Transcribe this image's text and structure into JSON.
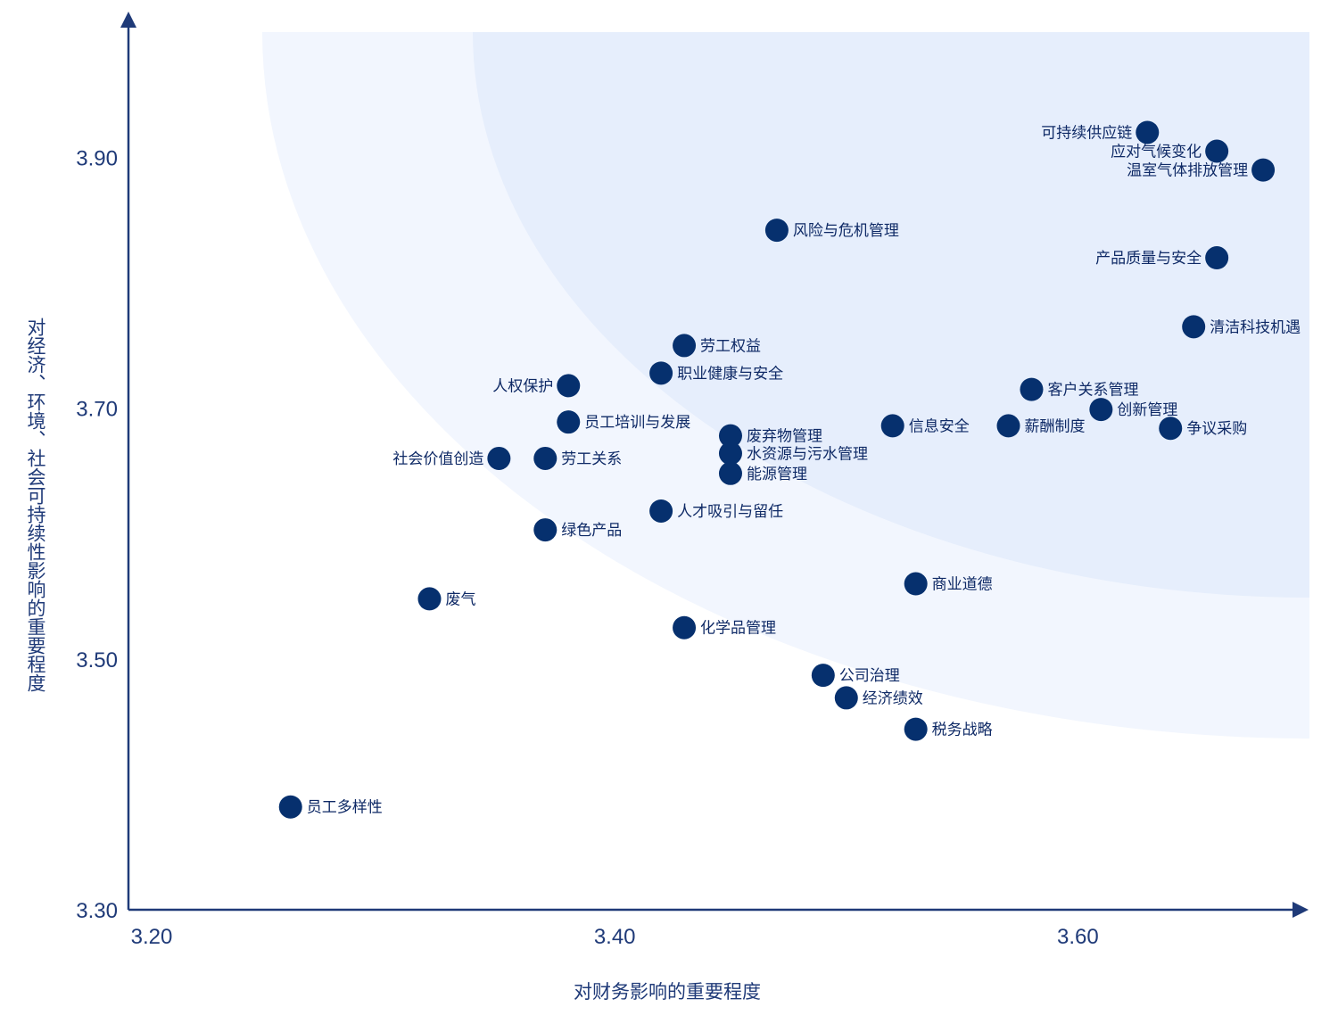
{
  "chart_data": {
    "type": "scatter",
    "title": "",
    "xlabel": "对财务影响的重要程度",
    "ylabel": "对经济、环境、社会可持续性影响的重要程度",
    "xlim": [
      3.19,
      3.7
    ],
    "ylim": [
      3.3,
      4.0
    ],
    "xticks": [
      "3.20",
      "3.40",
      "3.60"
    ],
    "xtick_values": [
      3.2,
      3.4,
      3.6
    ],
    "yticks": [
      "3.30",
      "3.50",
      "3.70",
      "3.90"
    ],
    "ytick_values": [
      3.3,
      3.5,
      3.7,
      3.9
    ],
    "grid": false,
    "colors": {
      "point": "#06306e",
      "axis": "#1f3a78",
      "outer_zone": "#f2f6fe",
      "inner_zone": "#e6eefc"
    },
    "points": [
      {
        "label": "可持续供应链",
        "x": 3.63,
        "y": 3.92,
        "label_pos": "left"
      },
      {
        "label": "应对气候变化",
        "x": 3.66,
        "y": 3.905,
        "label_pos": "left"
      },
      {
        "label": "温室气体排放管理",
        "x": 3.68,
        "y": 3.89,
        "label_pos": "left"
      },
      {
        "label": "风险与危机管理",
        "x": 3.47,
        "y": 3.842,
        "label_pos": "right"
      },
      {
        "label": "产品质量与安全",
        "x": 3.66,
        "y": 3.82,
        "label_pos": "left"
      },
      {
        "label": "清洁科技机遇",
        "x": 3.65,
        "y": 3.765,
        "label_pos": "right"
      },
      {
        "label": "劳工权益",
        "x": 3.43,
        "y": 3.75,
        "label_pos": "right"
      },
      {
        "label": "职业健康与安全",
        "x": 3.42,
        "y": 3.728,
        "label_pos": "right"
      },
      {
        "label": "人权保护",
        "x": 3.38,
        "y": 3.718,
        "label_pos": "left"
      },
      {
        "label": "客户关系管理",
        "x": 3.58,
        "y": 3.715,
        "label_pos": "right"
      },
      {
        "label": "创新管理",
        "x": 3.61,
        "y": 3.699,
        "label_pos": "right"
      },
      {
        "label": "员工培训与发展",
        "x": 3.38,
        "y": 3.689,
        "label_pos": "right"
      },
      {
        "label": "信息安全",
        "x": 3.52,
        "y": 3.686,
        "label_pos": "right"
      },
      {
        "label": "薪酬制度",
        "x": 3.57,
        "y": 3.686,
        "label_pos": "right"
      },
      {
        "label": "争议采购",
        "x": 3.64,
        "y": 3.684,
        "label_pos": "right"
      },
      {
        "label": "废弃物管理",
        "x": 3.45,
        "y": 3.678,
        "label_pos": "right"
      },
      {
        "label": "水资源与污水管理",
        "x": 3.45,
        "y": 3.664,
        "label_pos": "right"
      },
      {
        "label": "社会价值创造",
        "x": 3.35,
        "y": 3.66,
        "label_pos": "left"
      },
      {
        "label": "劳工关系",
        "x": 3.37,
        "y": 3.66,
        "label_pos": "right"
      },
      {
        "label": "能源管理",
        "x": 3.45,
        "y": 3.648,
        "label_pos": "right"
      },
      {
        "label": "人才吸引与留任",
        "x": 3.42,
        "y": 3.618,
        "label_pos": "right"
      },
      {
        "label": "绿色产品",
        "x": 3.37,
        "y": 3.603,
        "label_pos": "right"
      },
      {
        "label": "商业道德",
        "x": 3.53,
        "y": 3.56,
        "label_pos": "right"
      },
      {
        "label": "废气",
        "x": 3.32,
        "y": 3.548,
        "label_pos": "right"
      },
      {
        "label": "化学品管理",
        "x": 3.43,
        "y": 3.525,
        "label_pos": "right"
      },
      {
        "label": "公司治理",
        "x": 3.49,
        "y": 3.487,
        "label_pos": "right"
      },
      {
        "label": "经济绩效",
        "x": 3.5,
        "y": 3.469,
        "label_pos": "right"
      },
      {
        "label": "税务战略",
        "x": 3.53,
        "y": 3.444,
        "label_pos": "right"
      },
      {
        "label": "员工多样性",
        "x": 3.26,
        "y": 3.382,
        "label_pos": "right"
      }
    ]
  }
}
